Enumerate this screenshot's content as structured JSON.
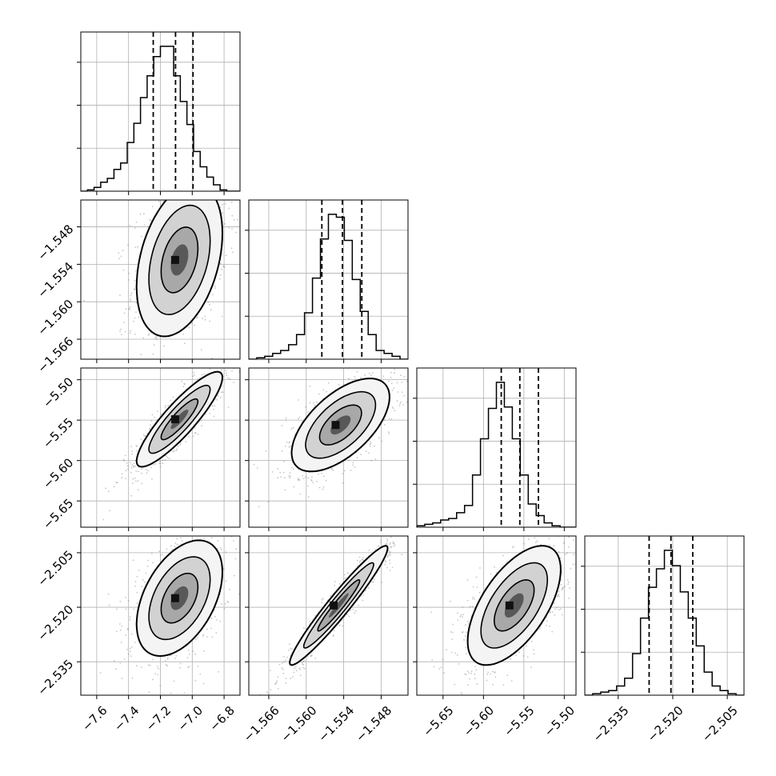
{
  "chart_data": {
    "type": "corner",
    "parameters": 4,
    "grid": true,
    "colors": {
      "line": "#000000",
      "grid": "#b0b0b0",
      "points": "#808080"
    },
    "quantiles": [
      [
        -7.245,
        -7.105,
        -6.995
      ],
      [
        -1.5575,
        -1.5542,
        -1.5511
      ],
      [
        -5.578,
        -5.555,
        -5.532
      ],
      [
        -2.5265,
        -2.5205,
        -2.5145
      ]
    ],
    "histograms": [
      {
        "range": [
          -7.7,
          -6.7
        ],
        "counts": [
          0,
          1,
          3,
          7,
          10,
          17,
          22,
          38,
          53,
          73,
          90,
          105,
          113,
          113,
          90,
          70,
          52,
          31,
          19,
          11,
          5,
          1,
          0,
          0
        ]
      },
      {
        "range": [
          -1.5692,
          -1.5437
        ],
        "counts": [
          0,
          1,
          2,
          4,
          6,
          10,
          17,
          32,
          56,
          83,
          100,
          98,
          82,
          55,
          33,
          17,
          6,
          4,
          2,
          0
        ]
      },
      {
        "range": [
          -5.6825,
          -5.4855
        ],
        "counts": [
          1,
          2,
          3,
          5,
          6,
          10,
          15,
          36,
          61,
          82,
          100,
          83,
          61,
          36,
          16,
          8,
          3,
          1,
          0,
          0
        ]
      },
      {
        "range": [
          -2.5442,
          -2.5004
        ],
        "counts": [
          0,
          1,
          2,
          3,
          6,
          11,
          27,
          50,
          70,
          82,
          94,
          84,
          67,
          50,
          32,
          15,
          6,
          3,
          1,
          0
        ]
      }
    ],
    "pairs": [
      {
        "x": 0,
        "y": 1,
        "center": [
          -7.08,
          -1.5533
        ],
        "sigma": [
          0.11,
          0.005
        ],
        "rho": 0.35
      },
      {
        "x": 0,
        "y": 2,
        "center": [
          -7.08,
          -5.549
        ],
        "sigma": [
          0.11,
          0.024
        ],
        "rho": 0.88
      },
      {
        "x": 1,
        "y": 2,
        "center": [
          -1.5545,
          -5.556
        ],
        "sigma": [
          0.0032,
          0.0235
        ],
        "rho": 0.6
      },
      {
        "x": 0,
        "y": 3,
        "center": [
          -7.08,
          -2.5175
        ],
        "sigma": [
          0.11,
          0.0065
        ],
        "rho": 0.45
      },
      {
        "x": 1,
        "y": 3,
        "center": [
          -1.5548,
          -2.5195
        ],
        "sigma": [
          0.0032,
          0.0067
        ],
        "rho": 0.96
      },
      {
        "x": 2,
        "y": 3,
        "center": [
          -5.562,
          -2.5195
        ],
        "sigma": [
          0.0235,
          0.0067
        ],
        "rho": 0.6
      }
    ],
    "axes": [
      {
        "range": [
          -7.7,
          -6.7
        ],
        "ticks": [
          -7.6,
          -7.4,
          -7.2,
          -7.0,
          -6.8
        ],
        "tick_labels": [
          "−7.6",
          "−7.4",
          "−7.2",
          "−7.0",
          "−6.8"
        ]
      },
      {
        "range": [
          -1.5692,
          -1.5437
        ],
        "ticks": [
          -1.566,
          -1.56,
          -1.554,
          -1.548
        ],
        "tick_labels": [
          "−1.566",
          "−1.560",
          "−1.554",
          "−1.548"
        ]
      },
      {
        "range": [
          -5.6825,
          -5.4855
        ],
        "ticks": [
          -5.65,
          -5.6,
          -5.55,
          -5.5
        ],
        "tick_labels": [
          "−5.65",
          "−5.60",
          "−5.55",
          "−5.50"
        ]
      },
      {
        "range": [
          -2.5442,
          -2.5004
        ],
        "ticks": [
          -2.535,
          -2.52,
          -2.505
        ],
        "tick_labels": [
          "−2.535",
          "−2.520",
          "−2.505"
        ]
      }
    ]
  }
}
